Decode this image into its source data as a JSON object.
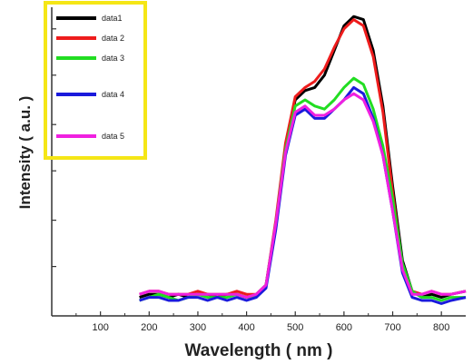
{
  "chart_data": {
    "type": "line",
    "title": "",
    "xlabel": "Wavelength ( nm )",
    "ylabel": "Intensity ( a.u. )",
    "xlim": [
      0,
      850
    ],
    "ylim": [
      0,
      1
    ],
    "xticks": [
      100,
      200,
      300,
      400,
      500,
      600,
      700,
      800
    ],
    "yticks_labeled": false,
    "grid": false,
    "legend": {
      "placement": "top-left",
      "border_color": "#f5e616"
    },
    "series": [
      {
        "name": "data1",
        "color": "#000000",
        "x": [
          180,
          200,
          220,
          240,
          260,
          280,
          300,
          320,
          340,
          360,
          380,
          400,
          420,
          440,
          460,
          480,
          500,
          520,
          540,
          560,
          580,
          600,
          620,
          640,
          660,
          680,
          700,
          720,
          740,
          760,
          780,
          800,
          820,
          850
        ],
        "y": [
          0.06,
          0.07,
          0.07,
          0.06,
          0.07,
          0.06,
          0.07,
          0.07,
          0.06,
          0.07,
          0.07,
          0.06,
          0.07,
          0.1,
          0.3,
          0.55,
          0.7,
          0.73,
          0.74,
          0.78,
          0.86,
          0.94,
          0.97,
          0.96,
          0.86,
          0.68,
          0.42,
          0.18,
          0.08,
          0.06,
          0.07,
          0.06,
          0.07,
          0.08
        ]
      },
      {
        "name": "data 2",
        "color": "#ee1c1c",
        "x": [
          180,
          200,
          220,
          240,
          260,
          280,
          300,
          320,
          340,
          360,
          380,
          400,
          420,
          440,
          460,
          480,
          500,
          520,
          540,
          560,
          580,
          600,
          620,
          640,
          660,
          680,
          700,
          720,
          740,
          760,
          780,
          800,
          820,
          850
        ],
        "y": [
          0.07,
          0.08,
          0.08,
          0.07,
          0.07,
          0.07,
          0.08,
          0.07,
          0.07,
          0.07,
          0.08,
          0.07,
          0.07,
          0.1,
          0.31,
          0.56,
          0.71,
          0.74,
          0.76,
          0.8,
          0.87,
          0.93,
          0.96,
          0.94,
          0.84,
          0.66,
          0.4,
          0.16,
          0.08,
          0.07,
          0.08,
          0.07,
          0.07,
          0.08
        ]
      },
      {
        "name": "data 3",
        "color": "#22dd22",
        "x": [
          180,
          200,
          220,
          240,
          260,
          280,
          300,
          320,
          340,
          360,
          380,
          400,
          420,
          440,
          460,
          480,
          500,
          520,
          540,
          560,
          580,
          600,
          620,
          640,
          660,
          680,
          700,
          720,
          740,
          760,
          780,
          800,
          820,
          850
        ],
        "y": [
          0.05,
          0.06,
          0.07,
          0.06,
          0.05,
          0.06,
          0.07,
          0.06,
          0.06,
          0.06,
          0.07,
          0.06,
          0.06,
          0.1,
          0.3,
          0.54,
          0.68,
          0.7,
          0.68,
          0.67,
          0.7,
          0.74,
          0.77,
          0.75,
          0.67,
          0.55,
          0.38,
          0.17,
          0.08,
          0.06,
          0.06,
          0.05,
          0.06,
          0.06
        ]
      },
      {
        "name": "data 4",
        "color": "#1a1adc",
        "x": [
          180,
          200,
          220,
          240,
          260,
          280,
          300,
          320,
          340,
          360,
          380,
          400,
          420,
          440,
          460,
          480,
          500,
          520,
          540,
          560,
          580,
          600,
          620,
          640,
          660,
          680,
          700,
          720,
          740,
          760,
          780,
          800,
          820,
          850
        ],
        "y": [
          0.05,
          0.06,
          0.06,
          0.05,
          0.05,
          0.06,
          0.06,
          0.05,
          0.06,
          0.05,
          0.06,
          0.05,
          0.06,
          0.09,
          0.28,
          0.52,
          0.65,
          0.67,
          0.64,
          0.64,
          0.67,
          0.7,
          0.74,
          0.72,
          0.64,
          0.52,
          0.34,
          0.14,
          0.06,
          0.05,
          0.05,
          0.04,
          0.05,
          0.06
        ]
      },
      {
        "name": "data 5",
        "color": "#f020e0",
        "x": [
          180,
          200,
          220,
          240,
          260,
          280,
          300,
          320,
          340,
          360,
          380,
          400,
          420,
          440,
          460,
          480,
          500,
          520,
          540,
          560,
          580,
          600,
          620,
          640,
          660,
          680,
          700,
          720,
          740,
          760,
          780,
          800,
          820,
          850
        ],
        "y": [
          0.07,
          0.08,
          0.08,
          0.07,
          0.07,
          0.07,
          0.07,
          0.07,
          0.07,
          0.07,
          0.07,
          0.06,
          0.07,
          0.1,
          0.3,
          0.53,
          0.66,
          0.68,
          0.65,
          0.65,
          0.67,
          0.7,
          0.72,
          0.7,
          0.63,
          0.52,
          0.34,
          0.15,
          0.07,
          0.07,
          0.08,
          0.07,
          0.07,
          0.08
        ]
      }
    ]
  }
}
